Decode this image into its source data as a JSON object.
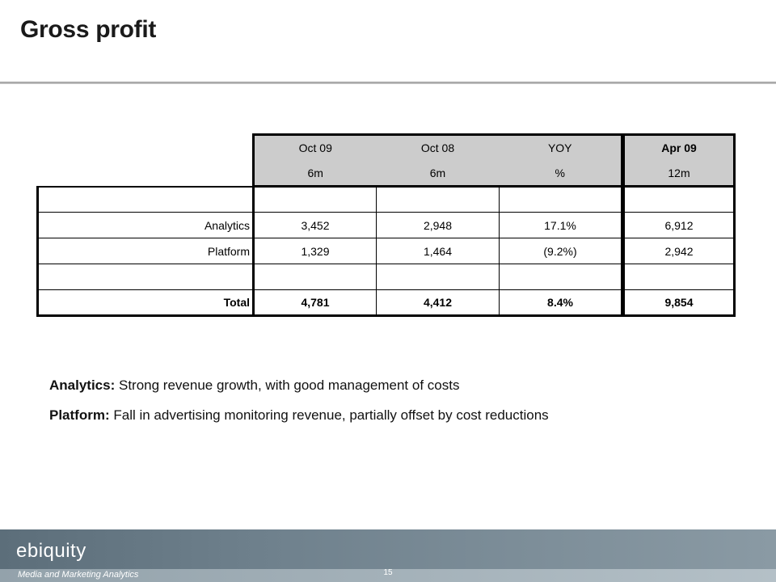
{
  "title": "Gross profit",
  "table": {
    "headers": [
      {
        "line1": "Oct 09",
        "line2": "6m"
      },
      {
        "line1": "Oct 08",
        "line2": "6m"
      },
      {
        "line1": "YOY",
        "line2": "%"
      }
    ],
    "side_header": {
      "line1": "Apr 09",
      "line2": "12m"
    },
    "rows": [
      {
        "label": "",
        "values": [
          "",
          "",
          ""
        ],
        "side": ""
      },
      {
        "label": "Analytics",
        "values": [
          "3,452",
          "2,948",
          "17.1%"
        ],
        "side": "6,912"
      },
      {
        "label": "Platform",
        "values": [
          "1,329",
          "1,464",
          "(9.2%)"
        ],
        "side": "2,942"
      },
      {
        "label": "",
        "values": [
          "",
          "",
          ""
        ],
        "side": ""
      },
      {
        "label": "Total",
        "values": [
          "4,781",
          "4,412",
          "8.4%"
        ],
        "side": "9,854"
      }
    ]
  },
  "notes": [
    {
      "label": "Analytics:",
      "text": "Strong revenue growth, with good management of costs"
    },
    {
      "label": "Platform:",
      "text": "Fall in advertising monitoring revenue, partially offset by cost reductions"
    }
  ],
  "footer": {
    "logo": "ebiquity",
    "tagline": "Media and Marketing Analytics",
    "page_number": "15"
  }
}
